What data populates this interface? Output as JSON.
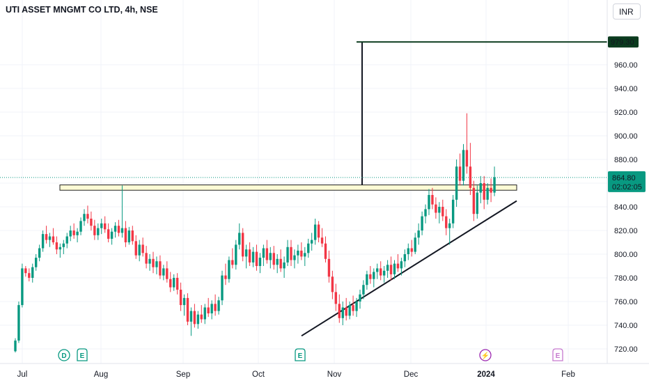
{
  "header": {
    "title": "UTI ASSET MNGMT CO LTD, 4h, NSE",
    "currency": "INR"
  },
  "colors": {
    "up": "#089981",
    "down": "#f23645",
    "price_label_bg": "#089981",
    "target_label_bg": "#0b3b1e",
    "zone_fill": "#fdfbd5",
    "zone_stroke": "#222222",
    "event_green": "#089981",
    "event_purple": "#9c27b0",
    "grid": "#f0f3fa"
  },
  "price_axis": {
    "tick_labels": [
      "960.00",
      "940.00",
      "920.00",
      "900.00",
      "880.00",
      "840.00",
      "820.00",
      "800.00",
      "780.00",
      "760.00",
      "740.00",
      "720.00"
    ]
  },
  "time_axis": {
    "labels": [
      "Jul",
      "Aug",
      "Sep",
      "Oct",
      "Nov",
      "Dec",
      "2024",
      "Feb"
    ]
  },
  "price_labels": {
    "last_price": "864.80",
    "countdown": "02:02:05",
    "target": "979.30"
  },
  "events": [
    {
      "letter": "D",
      "kind": "dividend",
      "color": "#089981"
    },
    {
      "letter": "E",
      "kind": "earnings",
      "color": "#089981"
    },
    {
      "letter": "E",
      "kind": "earnings",
      "color": "#089981"
    },
    {
      "letter": "⚡",
      "kind": "split",
      "color": "#9c27b0"
    },
    {
      "letter": "E",
      "kind": "earnings-upcoming",
      "color": "#c679cf"
    }
  ],
  "chart_data": {
    "type": "candlestick",
    "title": "UTI ASSET MNGMT CO LTD, 4h, NSE",
    "currency": "INR",
    "ylim": [
      712,
      990
    ],
    "last_price": 864.8,
    "grid": true,
    "drawings": {
      "resistance_zone": {
        "from": 854,
        "to": 858.5
      },
      "measure_target": 979.3,
      "trendline": {
        "from_price": 731,
        "to_price": 845
      }
    },
    "candles_ohlc": [
      [
        718,
        729,
        717,
        727
      ],
      [
        727,
        760,
        725,
        757
      ],
      [
        757,
        792,
        755,
        788
      ],
      [
        788,
        790,
        781,
        784
      ],
      [
        784,
        788,
        777,
        780
      ],
      [
        780,
        792,
        776,
        789
      ],
      [
        789,
        800,
        786,
        797
      ],
      [
        797,
        808,
        794,
        805
      ],
      [
        805,
        820,
        802,
        817
      ],
      [
        817,
        824,
        809,
        812
      ],
      [
        812,
        818,
        806,
        815
      ],
      [
        815,
        822,
        808,
        810
      ],
      [
        810,
        815,
        800,
        804
      ],
      [
        804,
        809,
        797,
        806
      ],
      [
        806,
        812,
        800,
        809
      ],
      [
        809,
        818,
        805,
        815
      ],
      [
        815,
        824,
        811,
        820
      ],
      [
        820,
        826,
        813,
        816
      ],
      [
        816,
        822,
        810,
        819
      ],
      [
        819,
        831,
        816,
        828
      ],
      [
        828,
        838,
        824,
        834
      ],
      [
        834,
        841,
        826,
        830
      ],
      [
        830,
        836,
        820,
        824
      ],
      [
        824,
        829,
        812,
        816
      ],
      [
        816,
        826,
        812,
        822
      ],
      [
        822,
        830,
        817,
        826
      ],
      [
        826,
        832,
        818,
        821
      ],
      [
        821,
        826,
        810,
        813
      ],
      [
        813,
        822,
        808,
        819
      ],
      [
        819,
        827,
        814,
        824
      ],
      [
        824,
        829,
        815,
        818
      ],
      [
        818,
        858,
        814,
        822
      ],
      [
        822,
        828,
        806,
        810
      ],
      [
        810,
        823,
        808,
        820
      ],
      [
        820,
        824,
        808,
        811
      ],
      [
        811,
        816,
        796,
        799
      ],
      [
        799,
        812,
        794,
        808
      ],
      [
        808,
        814,
        798,
        801
      ],
      [
        801,
        807,
        788,
        792
      ],
      [
        792,
        800,
        786,
        796
      ],
      [
        796,
        802,
        784,
        789
      ],
      [
        789,
        798,
        783,
        794
      ],
      [
        794,
        799,
        779,
        782
      ],
      [
        782,
        791,
        778,
        788
      ],
      [
        788,
        794,
        776,
        779
      ],
      [
        779,
        785,
        768,
        772
      ],
      [
        772,
        783,
        769,
        780
      ],
      [
        780,
        784,
        766,
        770
      ],
      [
        770,
        776,
        752,
        757
      ],
      [
        757,
        766,
        748,
        763
      ],
      [
        763,
        767,
        740,
        743
      ],
      [
        743,
        755,
        731,
        752
      ],
      [
        752,
        758,
        738,
        741
      ],
      [
        741,
        752,
        737,
        749
      ],
      [
        749,
        757,
        742,
        745
      ],
      [
        745,
        758,
        741,
        755
      ],
      [
        755,
        763,
        747,
        750
      ],
      [
        750,
        761,
        745,
        758
      ],
      [
        758,
        766,
        748,
        752
      ],
      [
        752,
        764,
        749,
        761
      ],
      [
        761,
        786,
        757,
        782
      ],
      [
        782,
        792,
        774,
        779
      ],
      [
        779,
        798,
        776,
        795
      ],
      [
        795,
        805,
        788,
        791
      ],
      [
        791,
        812,
        787,
        808
      ],
      [
        808,
        826,
        804,
        818
      ],
      [
        818,
        822,
        794,
        798
      ],
      [
        798,
        808,
        788,
        804
      ],
      [
        804,
        810,
        790,
        793
      ],
      [
        793,
        806,
        789,
        802
      ],
      [
        802,
        808,
        786,
        790
      ],
      [
        790,
        801,
        784,
        797
      ],
      [
        797,
        808,
        790,
        805
      ],
      [
        805,
        812,
        792,
        795
      ],
      [
        795,
        806,
        788,
        801
      ],
      [
        801,
        807,
        787,
        791
      ],
      [
        791,
        800,
        784,
        796
      ],
      [
        796,
        804,
        785,
        788
      ],
      [
        788,
        798,
        780,
        793
      ],
      [
        793,
        812,
        790,
        806
      ],
      [
        806,
        812,
        790,
        795
      ],
      [
        795,
        804,
        788,
        799
      ],
      [
        799,
        808,
        792,
        803
      ],
      [
        803,
        810,
        795,
        798
      ],
      [
        798,
        806,
        790,
        801
      ],
      [
        801,
        813,
        797,
        809
      ],
      [
        809,
        818,
        803,
        812
      ],
      [
        812,
        830,
        808,
        825
      ],
      [
        825,
        828,
        810,
        814
      ],
      [
        814,
        822,
        806,
        809
      ],
      [
        809,
        815,
        793,
        796
      ],
      [
        796,
        803,
        776,
        781
      ],
      [
        781,
        786,
        762,
        768
      ],
      [
        768,
        775,
        752,
        758
      ],
      [
        758,
        766,
        742,
        746
      ],
      [
        746,
        760,
        740,
        755
      ],
      [
        755,
        763,
        744,
        748
      ],
      [
        748,
        760,
        745,
        757
      ],
      [
        757,
        765,
        748,
        752
      ],
      [
        752,
        763,
        747,
        760
      ],
      [
        760,
        770,
        754,
        766
      ],
      [
        766,
        778,
        762,
        774
      ],
      [
        774,
        786,
        770,
        783
      ],
      [
        783,
        790,
        775,
        779
      ],
      [
        779,
        788,
        772,
        785
      ],
      [
        785,
        792,
        779,
        788
      ],
      [
        788,
        794,
        778,
        782
      ],
      [
        782,
        790,
        776,
        786
      ],
      [
        786,
        795,
        780,
        791
      ],
      [
        791,
        798,
        778,
        783
      ],
      [
        783,
        795,
        779,
        792
      ],
      [
        792,
        800,
        785,
        788
      ],
      [
        788,
        797,
        782,
        794
      ],
      [
        794,
        804,
        789,
        800
      ],
      [
        800,
        809,
        795,
        805
      ],
      [
        805,
        812,
        798,
        802
      ],
      [
        802,
        818,
        800,
        814
      ],
      [
        814,
        826,
        808,
        820
      ],
      [
        820,
        836,
        816,
        832
      ],
      [
        832,
        842,
        826,
        838
      ],
      [
        838,
        855,
        833,
        850
      ],
      [
        850,
        856,
        838,
        842
      ],
      [
        842,
        848,
        830,
        835
      ],
      [
        835,
        844,
        826,
        840
      ],
      [
        840,
        846,
        828,
        832
      ],
      [
        832,
        838,
        816,
        822
      ],
      [
        822,
        830,
        808,
        826
      ],
      [
        826,
        850,
        822,
        846
      ],
      [
        846,
        880,
        840,
        874
      ],
      [
        874,
        885,
        858,
        862
      ],
      [
        862,
        893,
        858,
        888
      ],
      [
        888,
        919,
        868,
        874
      ],
      [
        874,
        894,
        850,
        856
      ],
      [
        856,
        862,
        828,
        834
      ],
      [
        834,
        858,
        830,
        852
      ],
      [
        852,
        866,
        843,
        860
      ],
      [
        860,
        866,
        838,
        846
      ],
      [
        846,
        860,
        842,
        856
      ],
      [
        856,
        864,
        844,
        852
      ],
      [
        852,
        874,
        849,
        865
      ]
    ]
  }
}
